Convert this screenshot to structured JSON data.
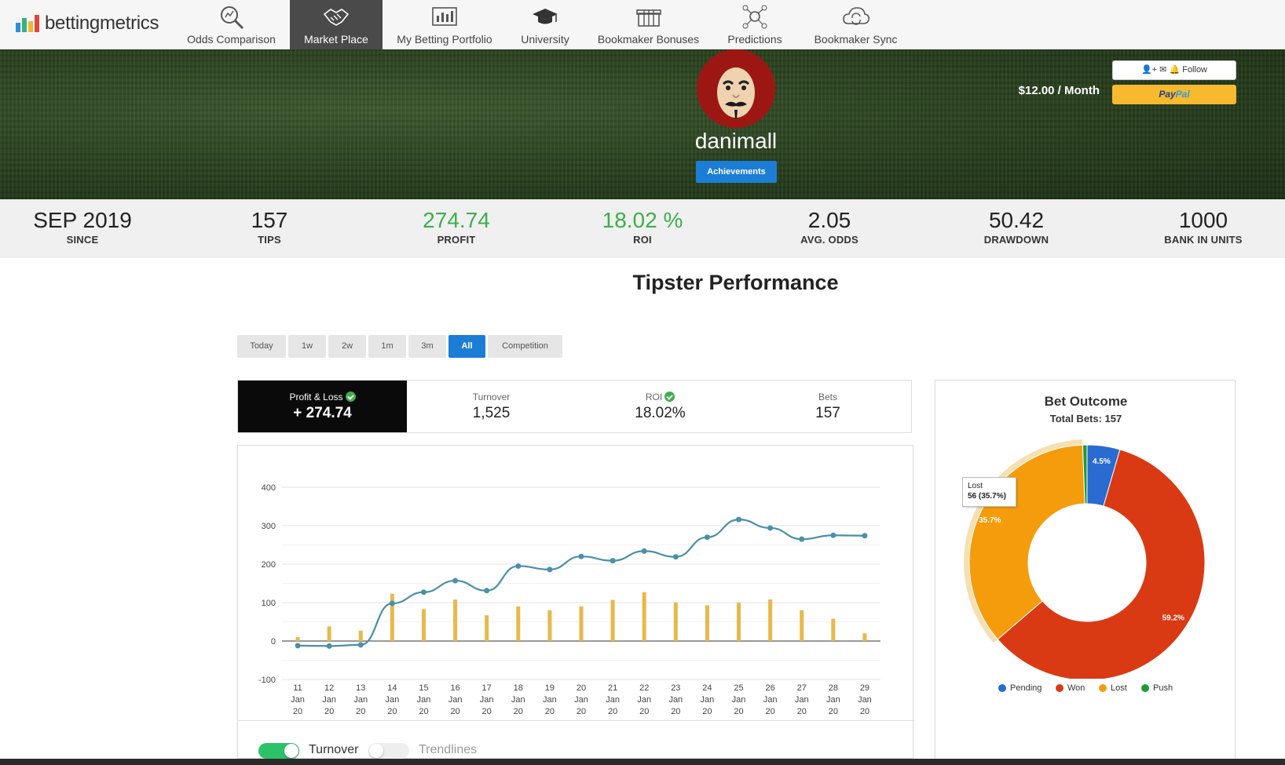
{
  "nav": {
    "logo_text": "bettingmetrics",
    "items": [
      {
        "label": "Odds Comparison",
        "icon": "magnifier-icon"
      },
      {
        "label": "Market Place",
        "icon": "handshake-icon",
        "active": true
      },
      {
        "label": "My Betting Portfolio",
        "icon": "portfolio-chart-icon"
      },
      {
        "label": "University",
        "icon": "graduation-cap-icon"
      },
      {
        "label": "Bookmaker Bonuses",
        "icon": "gift-icon"
      },
      {
        "label": "Predictions",
        "icon": "network-icon"
      },
      {
        "label": "Bookmaker Sync",
        "icon": "cloud-sync-icon"
      }
    ]
  },
  "profile": {
    "username": "danimall",
    "achievements_label": "Achievements",
    "price": "$12.00 / Month",
    "follow_label": "Follow",
    "paypal_label_1": "Pay",
    "paypal_label_2": "Pal"
  },
  "stats": [
    {
      "value": "SEP 2019",
      "label": "SINCE"
    },
    {
      "value": "157",
      "label": "TIPS"
    },
    {
      "value": "274.74",
      "label": "PROFIT",
      "green": true
    },
    {
      "value": "18.02 %",
      "label": "ROI",
      "green": true
    },
    {
      "value": "2.05",
      "label": "AVG. ODDS"
    },
    {
      "value": "50.42",
      "label": "DRAWDOWN"
    },
    {
      "value": "1000",
      "label": "BANK IN UNITS"
    }
  ],
  "performance_title": "Tipster Performance",
  "time_filters": [
    "Today",
    "1w",
    "2w",
    "1m",
    "3m",
    "All",
    "Competition"
  ],
  "active_filter": "All",
  "metrics": [
    {
      "label": "Profit & Loss",
      "value": "+ 274.74",
      "check": true
    },
    {
      "label": "Turnover",
      "value": "1,525"
    },
    {
      "label": "ROI",
      "value": "18.02%",
      "check": true
    },
    {
      "label": "Bets",
      "value": "157"
    }
  ],
  "toggles": [
    {
      "label": "Turnover",
      "on": true
    },
    {
      "label": "Trendlines",
      "on": false
    }
  ],
  "colors": {
    "line": "#4a90a8",
    "bar": "#e8b84a",
    "pending": "#2a6bd1",
    "won": "#d93a14",
    "lost": "#f59c0c",
    "push": "#1f9a3a"
  },
  "chart_data": [
    {
      "type": "line",
      "categories": [
        "11 Jan 20",
        "12 Jan 20",
        "13 Jan 20",
        "14 Jan 20",
        "15 Jan 20",
        "16 Jan 20",
        "17 Jan 20",
        "18 Jan 20",
        "19 Jan 20",
        "20 Jan 20",
        "21 Jan 20",
        "22 Jan 20",
        "23 Jan 20",
        "24 Jan 20",
        "25 Jan 20",
        "26 Jan 20",
        "27 Jan 20",
        "28 Jan 20",
        "29 Jan 20"
      ],
      "x_tick_lines": [
        [
          "11",
          "Jan",
          "20"
        ],
        [
          "12",
          "Jan",
          "20"
        ],
        [
          "13",
          "Jan",
          "20"
        ],
        [
          "14",
          "Jan",
          "20"
        ],
        [
          "15",
          "Jan",
          "20"
        ],
        [
          "16",
          "Jan",
          "20"
        ],
        [
          "17",
          "Jan",
          "20"
        ],
        [
          "18",
          "Jan",
          "20"
        ],
        [
          "19",
          "Jan",
          "20"
        ],
        [
          "20",
          "Jan",
          "20"
        ],
        [
          "21",
          "Jan",
          "20"
        ],
        [
          "22",
          "Jan",
          "20"
        ],
        [
          "23",
          "Jan",
          "20"
        ],
        [
          "24",
          "Jan",
          "20"
        ],
        [
          "25",
          "Jan",
          "20"
        ],
        [
          "26",
          "Jan",
          "20"
        ],
        [
          "27",
          "Jan",
          "20"
        ],
        [
          "28",
          "Jan",
          "20"
        ],
        [
          "29",
          "Jan",
          "20"
        ]
      ],
      "y_ticks": [
        "400",
        "300",
        "200",
        "100",
        "0",
        "-100"
      ],
      "ylim": [
        -100,
        400
      ],
      "series": [
        {
          "name": "Profit & Loss",
          "kind": "line",
          "values": [
            -12,
            -13,
            -10,
            98,
            127,
            157,
            131,
            195,
            186,
            220,
            209,
            234,
            219,
            270,
            316,
            294,
            265,
            275,
            274
          ]
        },
        {
          "name": "Turnover",
          "kind": "bar",
          "values": [
            10,
            38,
            27,
            123,
            83,
            108,
            67,
            90,
            80,
            90,
            107,
            127,
            100,
            93,
            100,
            108,
            80,
            58,
            20
          ]
        }
      ]
    },
    {
      "type": "pie",
      "title": "Bet Outcome",
      "subtitle": "Total Bets: 157",
      "slices": [
        {
          "label": "Pending",
          "value": 4.5
        },
        {
          "label": "Won",
          "value": 59.2
        },
        {
          "label": "Lost",
          "value": 35.7
        },
        {
          "label": "Push",
          "value": 0.6
        }
      ],
      "slice_labels": {
        "pending": "4.5%",
        "won": "59.2%",
        "lost": "35.7%"
      },
      "tooltip_line1": "Lost",
      "tooltip_line2": "56 (35.7%)",
      "legend": [
        "Pending",
        "Won",
        "Lost",
        "Push"
      ]
    }
  ]
}
